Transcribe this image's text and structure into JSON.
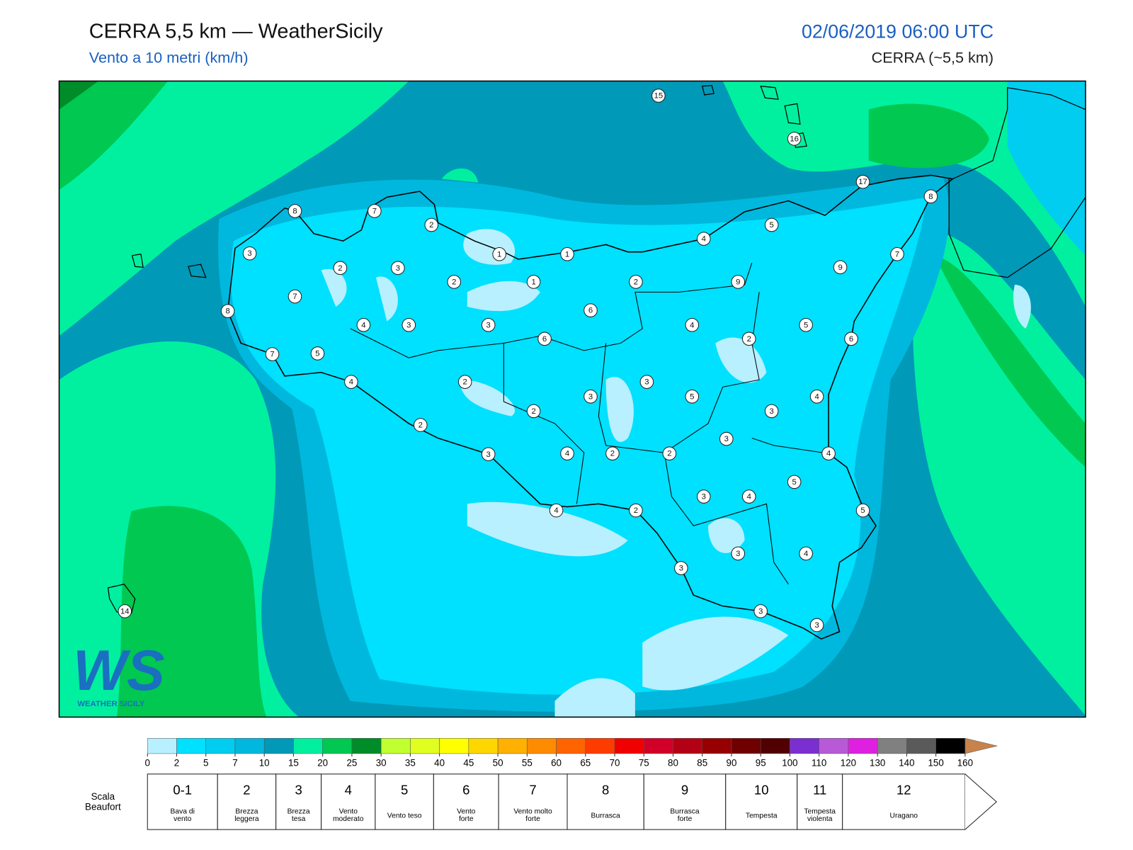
{
  "header": {
    "title": "CERRA 5,5 km — WeatherSicily",
    "subtitle": "Vento a 10 metri (km/h)",
    "datetime": "02/06/2019 06:00 UTC",
    "model": "CERRA (~5,5 km)"
  },
  "map": {
    "station_values": [
      15,
      16,
      17,
      8,
      8,
      7,
      2,
      5,
      3,
      1,
      1,
      4,
      7,
      2,
      3,
      2,
      1,
      2,
      9,
      9,
      7,
      8,
      4,
      3,
      3,
      6,
      4,
      5,
      6,
      2,
      6,
      7,
      5,
      4,
      2,
      3,
      3,
      5,
      4,
      3,
      2,
      2,
      3,
      3,
      4,
      2,
      2,
      4,
      5,
      3,
      4,
      4,
      2,
      5,
      3,
      4,
      3,
      3,
      3,
      14
    ]
  },
  "logo": {
    "mark": "WS",
    "name": "WEATHER SICILY"
  },
  "colorbar": {
    "ticks": [
      0,
      2,
      5,
      7,
      10,
      15,
      20,
      25,
      30,
      35,
      40,
      45,
      50,
      55,
      60,
      65,
      70,
      75,
      80,
      85,
      90,
      95,
      100,
      110,
      120,
      130,
      140,
      150,
      160
    ],
    "colors": [
      "#b8f0ff",
      "#00e0ff",
      "#00cdf0",
      "#00b8dd",
      "#0099b8",
      "#00f0a0",
      "#00c850",
      "#008c28",
      "#c0ff30",
      "#e0ff20",
      "#ffff00",
      "#ffd700",
      "#ffb000",
      "#ff8c00",
      "#ff6400",
      "#ff3c00",
      "#f00000",
      "#d20028",
      "#b40014",
      "#960000",
      "#6e0000",
      "#500000",
      "#7b2fd0",
      "#b85ad8",
      "#e020e0",
      "#808080",
      "#5a5a5a",
      "#000000",
      "#8b4a2b",
      "#c8824b"
    ]
  },
  "beaufort": {
    "label": [
      "Scala",
      "Beaufort"
    ],
    "levels": [
      {
        "force": "0-1",
        "description": [
          "Bava di",
          "vento"
        ]
      },
      {
        "force": "2",
        "description": [
          "Brezza",
          "leggera"
        ]
      },
      {
        "force": "3",
        "description": [
          "Brezza",
          "tesa"
        ]
      },
      {
        "force": "4",
        "description": [
          "Vento",
          "moderato"
        ]
      },
      {
        "force": "5",
        "description": [
          "Vento teso"
        ]
      },
      {
        "force": "6",
        "description": [
          "Vento",
          "forte"
        ]
      },
      {
        "force": "7",
        "description": [
          "Vento molto",
          "forte"
        ]
      },
      {
        "force": "8",
        "description": [
          "Burrasca"
        ]
      },
      {
        "force": "9",
        "description": [
          "Burrasca",
          "forte"
        ]
      },
      {
        "force": "10",
        "description": [
          "Tempesta"
        ]
      },
      {
        "force": "11",
        "description": [
          "Tempesta",
          "violenta"
        ]
      },
      {
        "force": "12",
        "description": [
          "Uragano"
        ]
      }
    ]
  }
}
